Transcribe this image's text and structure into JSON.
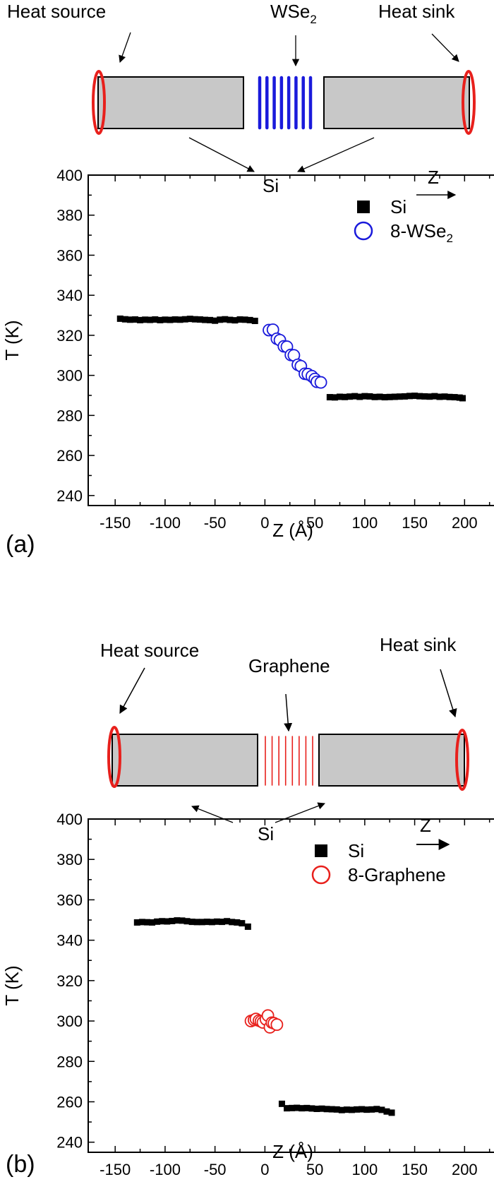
{
  "diagram_a": {
    "heat_source": "Heat  source",
    "layer": "WSe",
    "layer_sub": "2",
    "heat_sink": "Heat  sink",
    "si": "Si",
    "z": "Z",
    "layer_color": "#1a1adb",
    "ring_color": "#e8201c",
    "bar_color": "#c8c8c8"
  },
  "diagram_b": {
    "heat_source": "Heat  source",
    "layer": "Graphene",
    "heat_sink": "Heat  sink",
    "si": "Si",
    "z": "Z",
    "layer_color": "#e8201c",
    "ring_color": "#e8201c",
    "bar_color": "#c8c8c8"
  },
  "chart_data": [
    {
      "panel_label": "(a)",
      "type": "scatter",
      "xlabel": "Z (Å)",
      "ylabel": "T (K)",
      "xlim": [
        -177,
        233
      ],
      "ylim": [
        235,
        400
      ],
      "xticks": [
        -150,
        -100,
        -50,
        0,
        50,
        100,
        150,
        200
      ],
      "yticks": [
        240,
        260,
        280,
        300,
        320,
        340,
        360,
        380,
        400
      ],
      "legend_position": "top-right",
      "series": [
        {
          "name": "Si",
          "legend_sub": "",
          "marker": "filled-square",
          "color": "#000000",
          "points": [
            [
              -145,
              328.3
            ],
            [
              -140,
              328.0
            ],
            [
              -135,
              327.8
            ],
            [
              -130,
              327.9
            ],
            [
              -125,
              327.6
            ],
            [
              -120,
              327.8
            ],
            [
              -115,
              327.7
            ],
            [
              -110,
              327.9
            ],
            [
              -105,
              327.6
            ],
            [
              -100,
              327.8
            ],
            [
              -95,
              327.7
            ],
            [
              -90,
              327.9
            ],
            [
              -85,
              327.8
            ],
            [
              -80,
              328.0
            ],
            [
              -75,
              328.2
            ],
            [
              -70,
              328.0
            ],
            [
              -65,
              327.9
            ],
            [
              -60,
              327.7
            ],
            [
              -55,
              327.6
            ],
            [
              -50,
              327.3
            ],
            [
              -45,
              327.8
            ],
            [
              -40,
              328.0
            ],
            [
              -35,
              327.7
            ],
            [
              -30,
              327.5
            ],
            [
              -25,
              327.9
            ],
            [
              -20,
              327.8
            ],
            [
              -15,
              327.6
            ],
            [
              -10,
              327.2
            ],
            [
              65,
              289.1
            ],
            [
              70,
              289.0
            ],
            [
              75,
              289.3
            ],
            [
              80,
              289.2
            ],
            [
              85,
              289.4
            ],
            [
              90,
              289.6
            ],
            [
              95,
              289.3
            ],
            [
              100,
              289.6
            ],
            [
              105,
              289.5
            ],
            [
              110,
              289.2
            ],
            [
              115,
              289.3
            ],
            [
              120,
              289.1
            ],
            [
              125,
              289.2
            ],
            [
              130,
              289.3
            ],
            [
              135,
              289.4
            ],
            [
              140,
              289.5
            ],
            [
              145,
              289.7
            ],
            [
              150,
              289.8
            ],
            [
              155,
              289.6
            ],
            [
              160,
              289.5
            ],
            [
              165,
              289.4
            ],
            [
              170,
              289.6
            ],
            [
              175,
              289.3
            ],
            [
              180,
              289.4
            ],
            [
              185,
              289.2
            ],
            [
              190,
              289.1
            ],
            [
              195,
              288.9
            ],
            [
              198,
              288.6
            ]
          ]
        },
        {
          "name": "8-WSe",
          "legend_sub": "2",
          "marker": "open-circle",
          "color": "#1a1adb",
          "points": [
            [
              4,
              322.6
            ],
            [
              8,
              322.8
            ],
            [
              12,
              318.3
            ],
            [
              15,
              317.6
            ],
            [
              19,
              314.5
            ],
            [
              22,
              314.3
            ],
            [
              26,
              310.2
            ],
            [
              29,
              310.0
            ],
            [
              33,
              305.3
            ],
            [
              36,
              304.6
            ],
            [
              40,
              300.8
            ],
            [
              43,
              300.6
            ],
            [
              47,
              299.6
            ],
            [
              50,
              298.2
            ],
            [
              52,
              296.8
            ],
            [
              56,
              296.5
            ]
          ]
        }
      ]
    },
    {
      "panel_label": "(b)",
      "type": "scatter",
      "xlabel": "Z (Å)",
      "ylabel": "T (K)",
      "xlim": [
        -177,
        233
      ],
      "ylim": [
        235,
        400
      ],
      "xticks": [
        -150,
        -100,
        -50,
        0,
        50,
        100,
        150,
        200
      ],
      "yticks": [
        240,
        260,
        280,
        300,
        320,
        340,
        360,
        380,
        400
      ],
      "legend_position": "top-right",
      "series": [
        {
          "name": "Si",
          "legend_sub": "",
          "marker": "filled-square",
          "color": "#000000",
          "points": [
            [
              -128,
              348.8
            ],
            [
              -123,
              349.0
            ],
            [
              -118,
              348.9
            ],
            [
              -113,
              348.8
            ],
            [
              -108,
              349.2
            ],
            [
              -103,
              349.4
            ],
            [
              -98,
              349.3
            ],
            [
              -93,
              349.5
            ],
            [
              -88,
              349.8
            ],
            [
              -83,
              349.7
            ],
            [
              -78,
              349.4
            ],
            [
              -73,
              349.1
            ],
            [
              -68,
              349.0
            ],
            [
              -63,
              349.0
            ],
            [
              -58,
              349.1
            ],
            [
              -53,
              349.0
            ],
            [
              -48,
              349.2
            ],
            [
              -43,
              349.1
            ],
            [
              -38,
              349.4
            ],
            [
              -33,
              349.0
            ],
            [
              -28,
              348.8
            ],
            [
              -23,
              348.4
            ],
            [
              -17,
              346.7
            ],
            [
              17,
              259.0
            ],
            [
              22,
              256.8
            ],
            [
              27,
              256.9
            ],
            [
              32,
              257.0
            ],
            [
              37,
              256.8
            ],
            [
              42,
              256.9
            ],
            [
              47,
              256.7
            ],
            [
              52,
              256.5
            ],
            [
              57,
              256.6
            ],
            [
              62,
              256.4
            ],
            [
              67,
              256.3
            ],
            [
              72,
              256.2
            ],
            [
              77,
              255.9
            ],
            [
              82,
              256.1
            ],
            [
              87,
              256.0
            ],
            [
              92,
              256.2
            ],
            [
              97,
              256.3
            ],
            [
              102,
              256.1
            ],
            [
              107,
              256.2
            ],
            [
              112,
              256.4
            ],
            [
              117,
              256.0
            ],
            [
              122,
              255.2
            ],
            [
              127,
              254.6
            ]
          ]
        },
        {
          "name": "8-Graphene",
          "legend_sub": "",
          "marker": "open-circle",
          "color": "#e8201c",
          "points": [
            [
              -14,
              300.0
            ],
            [
              -11,
              300.5
            ],
            [
              -9,
              301.0
            ],
            [
              -6,
              300.2
            ],
            [
              -4,
              299.8
            ],
            [
              -2,
              299.3
            ],
            [
              1,
              300.8
            ],
            [
              3,
              302.7
            ],
            [
              5,
              296.9
            ],
            [
              7,
              299.2
            ],
            [
              9,
              298.9
            ],
            [
              12,
              298.2
            ]
          ]
        }
      ]
    }
  ]
}
